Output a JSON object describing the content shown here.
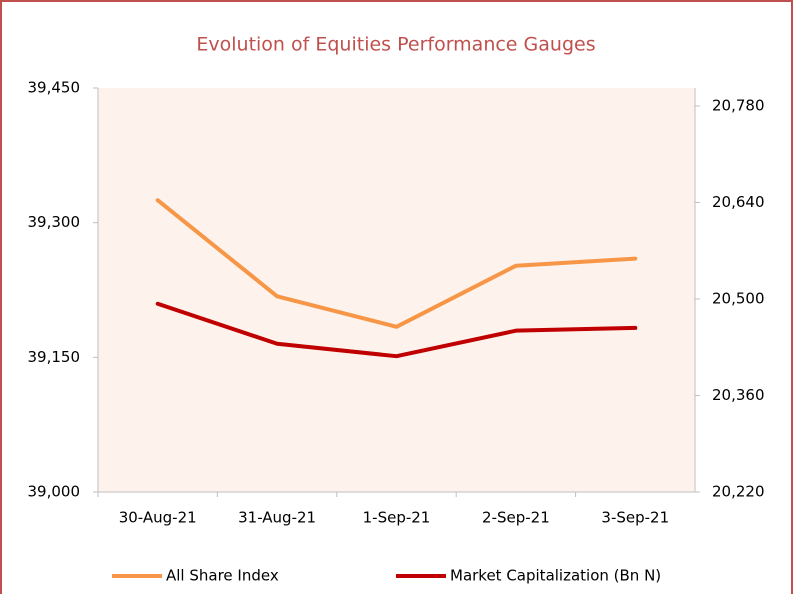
{
  "chart_data": {
    "type": "line",
    "title": "Evolution of Equities Performance Gauges",
    "categories": [
      "30-Aug-21",
      "31-Aug-21",
      "1-Sep-21",
      "2-Sep-21",
      "3-Sep-21"
    ],
    "series": [
      {
        "name": "All Share Index",
        "color": "#f79646",
        "values": [
          39325,
          39218,
          39184,
          39252,
          39260
        ]
      },
      {
        "name": "Market Capitalization (Bn N)",
        "color": "#c00000",
        "axis": "y2",
        "values": [
          20493,
          20435,
          20417,
          20454,
          20458
        ]
      }
    ],
    "ylim": [
      39000,
      39450
    ],
    "yticks": [
      {
        "value": 39000,
        "label": "39,000"
      },
      {
        "value": 39150,
        "label": "39,150"
      },
      {
        "value": 39300,
        "label": "39,300"
      },
      {
        "value": 39450,
        "label": "39,450"
      }
    ],
    "y2lim": [
      20220,
      20806
    ],
    "y2ticks": [
      {
        "value": 20220,
        "label": "20,220"
      },
      {
        "value": 20360,
        "label": "20,360"
      },
      {
        "value": 20500,
        "label": "20,500"
      },
      {
        "value": 20640,
        "label": "20,640"
      },
      {
        "value": 20780,
        "label": "20,780"
      }
    ],
    "legend": "bottom"
  }
}
